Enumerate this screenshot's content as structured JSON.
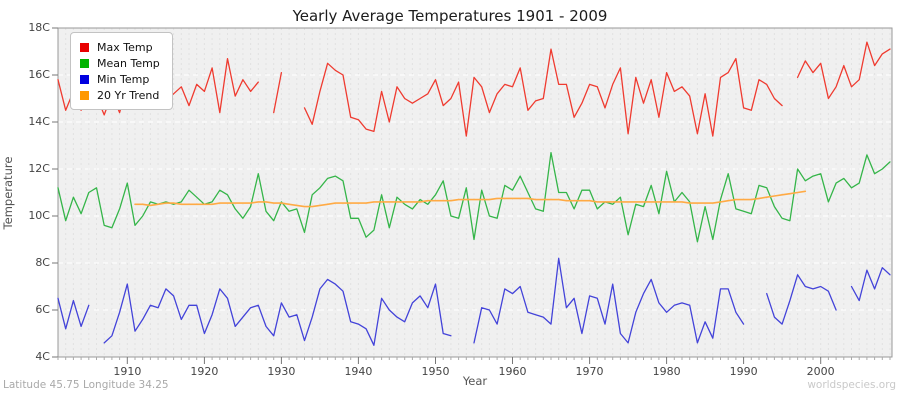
{
  "title": "Yearly Average Temperatures 1901 - 2009",
  "footer": {
    "left": "Latitude 45.75 Longitude 34.25",
    "right": "worldspecies.org"
  },
  "legend": [
    {
      "label": "Max Temp",
      "color": "#e80000"
    },
    {
      "label": "Mean Temp",
      "color": "#00b400"
    },
    {
      "label": "Min Temp",
      "color": "#0000e0"
    },
    {
      "label": "20 Yr Trend",
      "color": "#ff9800"
    }
  ],
  "y_axis": {
    "label": "Temperature",
    "ticks": [
      "18C",
      "16C",
      "14C",
      "12C",
      "10C",
      "8C",
      "6C",
      "4C"
    ]
  },
  "x_axis": {
    "label": "Year",
    "ticks": [
      1910,
      1920,
      1930,
      1940,
      1950,
      1960,
      1970,
      1980,
      1990,
      2000
    ]
  },
  "chart_data": {
    "type": "line",
    "title": "Yearly Average Temperatures 1901 - 2009",
    "xlabel": "Year",
    "ylabel": "Temperature",
    "ylim": [
      4,
      18
    ],
    "y_unit": "C",
    "x_start": 1901,
    "x_end": 2009,
    "grid": true,
    "legend_position": "top-left",
    "note": "null = missing data (visible gaps in lines)",
    "series": [
      {
        "name": "Max Temp",
        "color": "#ef3b30",
        "width": 1.3,
        "values": [
          15.8,
          14.5,
          15.3,
          14.5,
          15.7,
          15.1,
          14.3,
          15.2,
          14.4,
          15.6,
          15.4,
          14.9,
          15.6,
          16.1,
          14.9,
          15.2,
          15.5,
          14.7,
          15.6,
          15.3,
          16.3,
          14.4,
          16.7,
          15.1,
          15.8,
          15.3,
          15.7,
          null,
          14.4,
          16.1,
          null,
          null,
          14.6,
          13.9,
          15.3,
          16.5,
          16.2,
          16.0,
          14.2,
          14.1,
          13.7,
          13.6,
          15.3,
          14.0,
          15.5,
          15.0,
          14.8,
          15.0,
          15.2,
          15.8,
          14.7,
          15.0,
          15.7,
          13.4,
          15.9,
          15.5,
          14.4,
          15.2,
          15.6,
          15.5,
          16.3,
          14.5,
          14.9,
          15.0,
          17.1,
          15.6,
          15.6,
          14.2,
          14.8,
          15.6,
          15.5,
          14.6,
          15.6,
          16.3,
          13.5,
          15.9,
          14.8,
          15.8,
          14.2,
          16.1,
          15.3,
          15.5,
          15.1,
          13.5,
          15.2,
          13.4,
          15.9,
          16.1,
          16.7,
          14.6,
          14.5,
          15.8,
          15.6,
          15.0,
          14.7,
          null,
          15.9,
          16.6,
          16.1,
          16.5,
          15.0,
          15.5,
          16.4,
          15.5,
          15.8,
          17.4,
          16.4,
          16.9,
          17.1
        ]
      },
      {
        "name": "Mean Temp",
        "color": "#35b549",
        "width": 1.3,
        "values": [
          11.2,
          9.8,
          10.8,
          10.1,
          11.0,
          11.2,
          9.6,
          9.5,
          10.3,
          11.4,
          9.6,
          10.0,
          10.6,
          10.5,
          10.6,
          10.5,
          10.6,
          11.1,
          10.8,
          10.5,
          10.6,
          11.1,
          10.9,
          10.3,
          9.9,
          10.4,
          11.8,
          10.2,
          9.8,
          10.6,
          10.2,
          10.3,
          9.3,
          10.9,
          11.2,
          11.6,
          11.7,
          11.5,
          9.9,
          9.9,
          9.1,
          9.4,
          10.9,
          9.5,
          10.8,
          10.5,
          10.3,
          10.7,
          10.5,
          10.9,
          11.5,
          10.0,
          9.9,
          11.2,
          9.0,
          11.1,
          10.0,
          9.9,
          11.3,
          11.1,
          11.7,
          11.0,
          10.3,
          10.2,
          12.7,
          11.0,
          11.0,
          10.3,
          11.1,
          11.1,
          10.3,
          10.6,
          10.5,
          10.8,
          9.2,
          10.5,
          10.4,
          11.3,
          10.1,
          11.9,
          10.6,
          11.0,
          10.6,
          8.9,
          10.4,
          9.0,
          10.7,
          11.8,
          10.3,
          10.2,
          10.1,
          11.3,
          11.2,
          10.4,
          9.9,
          9.8,
          12.0,
          11.5,
          11.7,
          11.8,
          10.6,
          11.4,
          11.6,
          11.2,
          11.4,
          12.6,
          11.8,
          12.0,
          12.3
        ]
      },
      {
        "name": "Min Temp",
        "color": "#4343d9",
        "width": 1.3,
        "values": [
          6.5,
          5.2,
          6.4,
          5.3,
          6.2,
          null,
          4.6,
          4.9,
          5.9,
          7.1,
          5.1,
          5.6,
          6.2,
          6.1,
          6.9,
          6.6,
          5.6,
          6.2,
          6.2,
          5.0,
          5.8,
          6.9,
          6.5,
          5.3,
          5.7,
          6.1,
          6.2,
          5.3,
          4.9,
          6.3,
          5.7,
          5.8,
          4.7,
          5.7,
          6.9,
          7.3,
          7.1,
          6.8,
          5.5,
          5.4,
          5.2,
          4.5,
          6.5,
          6.0,
          5.7,
          5.5,
          6.3,
          6.6,
          6.1,
          7.1,
          5.0,
          4.9,
          null,
          null,
          4.6,
          6.1,
          6.0,
          5.4,
          6.9,
          6.7,
          7.0,
          5.9,
          5.8,
          5.7,
          5.4,
          8.2,
          6.1,
          6.5,
          5.0,
          6.6,
          6.5,
          5.4,
          7.1,
          5.0,
          4.6,
          5.9,
          6.7,
          7.3,
          6.3,
          5.9,
          6.2,
          6.3,
          6.2,
          4.6,
          5.5,
          4.8,
          6.9,
          6.9,
          5.9,
          5.4,
          null,
          null,
          6.7,
          5.7,
          5.4,
          6.4,
          7.5,
          7.0,
          6.9,
          7.0,
          6.8,
          6.0,
          null,
          7.0,
          6.4,
          7.7,
          6.9,
          7.8,
          7.5
        ]
      },
      {
        "name": "20 Yr Trend",
        "color": "#ffaa44",
        "width": 1.6,
        "start_year": 1911,
        "values": [
          10.5,
          10.5,
          10.45,
          10.5,
          10.55,
          10.55,
          10.5,
          10.5,
          10.5,
          10.5,
          10.5,
          10.55,
          10.55,
          10.55,
          10.55,
          10.55,
          10.6,
          10.6,
          10.55,
          10.55,
          10.5,
          10.45,
          10.4,
          10.4,
          10.45,
          10.5,
          10.55,
          10.55,
          10.55,
          10.55,
          10.55,
          10.6,
          10.6,
          10.6,
          10.6,
          10.6,
          10.6,
          10.6,
          10.65,
          10.65,
          10.65,
          10.65,
          10.7,
          10.7,
          10.7,
          10.7,
          10.7,
          10.75,
          10.75,
          10.75,
          10.75,
          10.75,
          10.7,
          10.7,
          10.7,
          10.7,
          10.65,
          10.65,
          10.65,
          10.65,
          10.6,
          10.6,
          10.6,
          10.6,
          10.6,
          10.6,
          10.6,
          10.6,
          10.6,
          10.6,
          10.6,
          10.6,
          10.55,
          10.55,
          10.55,
          10.55,
          10.6,
          10.65,
          10.7,
          10.7,
          10.7,
          10.75,
          10.8,
          10.85,
          10.9,
          10.95,
          11.0,
          11.05
        ]
      }
    ]
  }
}
